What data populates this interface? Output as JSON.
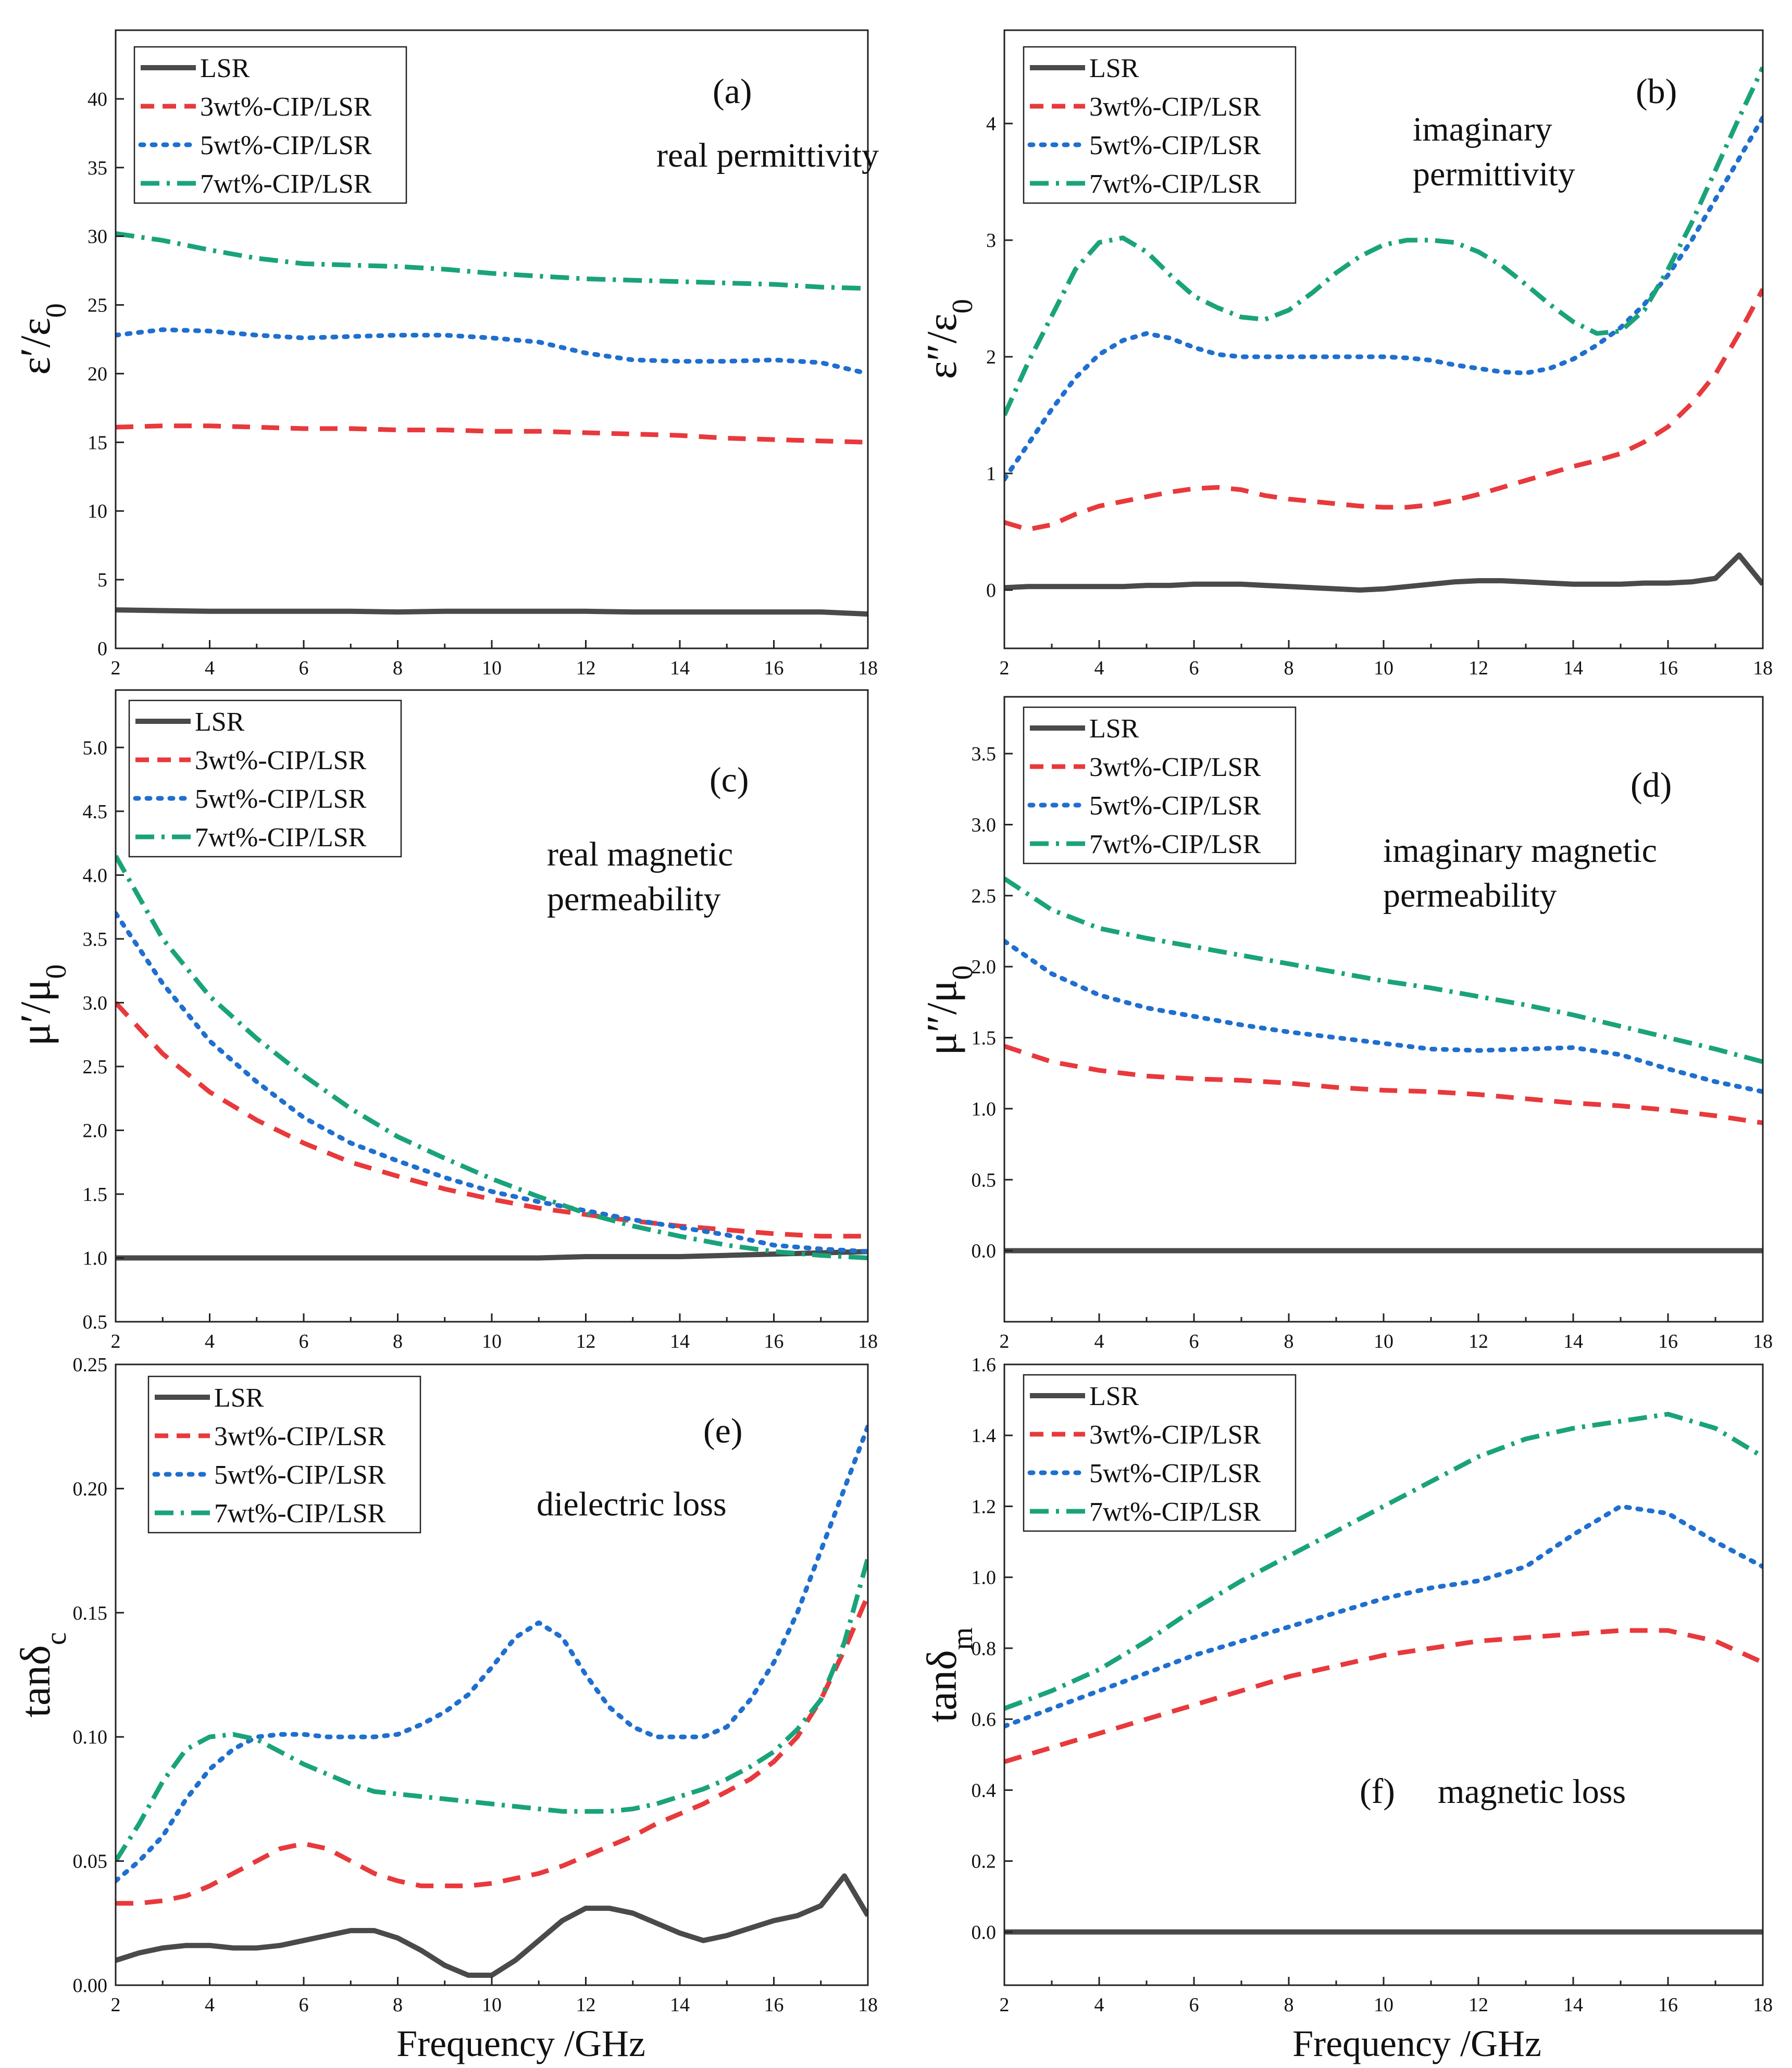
{
  "figure": {
    "xlabel_bottom": "Frequency /GHz",
    "legend": [
      "LSR",
      "3wt%-CIP/LSR",
      "5wt%-CIP/LSR",
      "7wt%-CIP/LSR"
    ],
    "series_colors": [
      "#4a4a4a",
      "#e8393c",
      "#1f6fcf",
      "#1aa37a"
    ],
    "series_styles": [
      "solid",
      "dashed",
      "dotted",
      "dashdot"
    ]
  },
  "chart_data": [
    {
      "type": "line",
      "label": "(a)",
      "annotation": [
        "real permittivity"
      ],
      "ylabel_main": "ε′/ε",
      "ylabel_sub": "0",
      "xlim": [
        2,
        18
      ],
      "ylim": [
        0,
        45
      ],
      "xticks": [
        "2",
        "4",
        "6",
        "8",
        "10",
        "12",
        "14",
        "16",
        "18"
      ],
      "yticks": [
        "0",
        "5",
        "10",
        "15",
        "20",
        "25",
        "30",
        "35",
        "40"
      ],
      "x": [
        2,
        3,
        4,
        5,
        6,
        7,
        8,
        9,
        10,
        11,
        12,
        13,
        14,
        15,
        16,
        17,
        18
      ],
      "series": [
        {
          "name": "LSR",
          "values": [
            2.8,
            2.75,
            2.7,
            2.7,
            2.7,
            2.7,
            2.65,
            2.7,
            2.7,
            2.7,
            2.7,
            2.65,
            2.65,
            2.65,
            2.65,
            2.65,
            2.5
          ]
        },
        {
          "name": "3wt%-CIP/LSR",
          "values": [
            16.1,
            16.2,
            16.2,
            16.1,
            16.0,
            16.0,
            15.9,
            15.9,
            15.8,
            15.8,
            15.7,
            15.6,
            15.5,
            15.3,
            15.2,
            15.1,
            15.0
          ]
        },
        {
          "name": "5wt%-CIP/LSR",
          "values": [
            22.8,
            23.2,
            23.1,
            22.8,
            22.6,
            22.7,
            22.8,
            22.8,
            22.6,
            22.3,
            21.5,
            21.0,
            20.9,
            20.9,
            21.0,
            20.8,
            20.0
          ]
        },
        {
          "name": "7wt%-CIP/LSR",
          "values": [
            30.2,
            29.7,
            29.0,
            28.4,
            28.0,
            27.9,
            27.8,
            27.6,
            27.3,
            27.1,
            26.9,
            26.8,
            26.7,
            26.6,
            26.5,
            26.3,
            26.2
          ]
        }
      ]
    },
    {
      "type": "line",
      "label": "(b)",
      "annotation": [
        "imaginary",
        "permittivity"
      ],
      "ylabel_main": "ε″/ε",
      "ylabel_sub": "0",
      "xlim": [
        2,
        18
      ],
      "ylim": [
        -0.5,
        4.8
      ],
      "xticks": [
        "2",
        "4",
        "6",
        "8",
        "10",
        "12",
        "14",
        "16",
        "18"
      ],
      "yticks": [
        "0",
        "1",
        "2",
        "3",
        "4"
      ],
      "x": [
        2,
        2.5,
        3,
        3.5,
        4,
        4.5,
        5,
        5.5,
        6,
        6.5,
        7,
        7.5,
        8,
        8.5,
        9,
        9.5,
        10,
        10.5,
        11,
        11.5,
        12,
        12.5,
        13,
        13.5,
        14,
        14.5,
        15,
        15.5,
        16,
        16.5,
        17,
        17.5,
        18
      ],
      "series": [
        {
          "name": "LSR",
          "values": [
            0.02,
            0.03,
            0.03,
            0.03,
            0.03,
            0.03,
            0.04,
            0.04,
            0.05,
            0.05,
            0.05,
            0.04,
            0.03,
            0.02,
            0.01,
            0.0,
            0.01,
            0.03,
            0.05,
            0.07,
            0.08,
            0.08,
            0.07,
            0.06,
            0.05,
            0.05,
            0.05,
            0.06,
            0.06,
            0.07,
            0.1,
            0.3,
            0.05
          ]
        },
        {
          "name": "3wt%-CIP/LSR",
          "values": [
            0.58,
            0.52,
            0.56,
            0.65,
            0.72,
            0.76,
            0.8,
            0.84,
            0.87,
            0.88,
            0.86,
            0.81,
            0.78,
            0.76,
            0.74,
            0.72,
            0.71,
            0.71,
            0.73,
            0.77,
            0.82,
            0.88,
            0.94,
            1.0,
            1.06,
            1.11,
            1.17,
            1.27,
            1.4,
            1.6,
            1.85,
            2.2,
            2.58
          ]
        },
        {
          "name": "5wt%-CIP/LSR",
          "values": [
            0.95,
            1.25,
            1.55,
            1.82,
            2.02,
            2.14,
            2.2,
            2.16,
            2.08,
            2.02,
            2.0,
            2.0,
            2.0,
            2.0,
            2.0,
            2.0,
            2.0,
            1.99,
            1.97,
            1.93,
            1.9,
            1.87,
            1.86,
            1.9,
            1.98,
            2.1,
            2.25,
            2.45,
            2.7,
            3.0,
            3.35,
            3.7,
            4.05
          ]
        },
        {
          "name": "7wt%-CIP/LSR",
          "values": [
            1.5,
            1.95,
            2.35,
            2.75,
            2.98,
            3.02,
            2.9,
            2.7,
            2.52,
            2.42,
            2.34,
            2.32,
            2.4,
            2.55,
            2.72,
            2.86,
            2.96,
            3.0,
            3.0,
            2.98,
            2.9,
            2.78,
            2.62,
            2.45,
            2.3,
            2.2,
            2.22,
            2.4,
            2.75,
            3.15,
            3.6,
            4.05,
            4.48
          ]
        }
      ]
    },
    {
      "type": "line",
      "label": "(c)",
      "annotation": [
        "real magnetic",
        "permeability"
      ],
      "ylabel_main": "μ′/μ",
      "ylabel_sub": "0",
      "xlim": [
        2,
        18
      ],
      "ylim": [
        0.5,
        5.45
      ],
      "xticks": [
        "2",
        "4",
        "6",
        "8",
        "10",
        "12",
        "14",
        "16",
        "18"
      ],
      "yticks": [
        "0.5",
        "1.0",
        "1.5",
        "2.0",
        "2.5",
        "3.0",
        "3.5",
        "4.0",
        "4.5",
        "5.0"
      ],
      "x": [
        2,
        3,
        4,
        5,
        6,
        7,
        8,
        9,
        10,
        11,
        12,
        13,
        14,
        15,
        16,
        17,
        18
      ],
      "series": [
        {
          "name": "LSR",
          "values": [
            1.0,
            1.0,
            1.0,
            1.0,
            1.0,
            1.0,
            1.0,
            1.0,
            1.0,
            1.0,
            1.01,
            1.01,
            1.01,
            1.02,
            1.03,
            1.04,
            1.05
          ]
        },
        {
          "name": "3wt%-CIP/LSR",
          "values": [
            3.0,
            2.6,
            2.3,
            2.08,
            1.9,
            1.75,
            1.64,
            1.54,
            1.46,
            1.39,
            1.34,
            1.29,
            1.25,
            1.22,
            1.19,
            1.17,
            1.17
          ]
        },
        {
          "name": "5wt%-CIP/LSR",
          "values": [
            3.7,
            3.15,
            2.7,
            2.38,
            2.1,
            1.9,
            1.76,
            1.63,
            1.52,
            1.44,
            1.37,
            1.3,
            1.24,
            1.18,
            1.1,
            1.07,
            1.05
          ]
        },
        {
          "name": "7wt%-CIP/LSR",
          "values": [
            4.15,
            3.5,
            3.05,
            2.72,
            2.43,
            2.17,
            1.95,
            1.78,
            1.62,
            1.48,
            1.35,
            1.25,
            1.17,
            1.1,
            1.05,
            1.02,
            1.0
          ]
        }
      ]
    },
    {
      "type": "line",
      "label": "(d)",
      "annotation": [
        "imaginary magnetic",
        "permeability"
      ],
      "ylabel_main": "μ″/μ",
      "ylabel_sub": "0",
      "xlim": [
        2,
        18
      ],
      "ylim": [
        -0.5,
        3.9
      ],
      "xticks": [
        "2",
        "4",
        "6",
        "8",
        "10",
        "12",
        "14",
        "16",
        "18"
      ],
      "yticks": [
        "0.0",
        "0.5",
        "1.0",
        "1.5",
        "2.0",
        "2.5",
        "3.0",
        "3.5"
      ],
      "x": [
        2,
        3,
        4,
        5,
        6,
        7,
        8,
        9,
        10,
        11,
        12,
        13,
        14,
        15,
        16,
        17,
        18
      ],
      "series": [
        {
          "name": "LSR",
          "values": [
            0.0,
            0.0,
            0.0,
            0.0,
            0.0,
            0.0,
            0.0,
            0.0,
            0.0,
            0.0,
            0.0,
            0.0,
            0.0,
            0.0,
            0.0,
            0.0,
            0.0
          ]
        },
        {
          "name": "3wt%-CIP/LSR",
          "values": [
            1.44,
            1.33,
            1.27,
            1.23,
            1.21,
            1.2,
            1.18,
            1.15,
            1.13,
            1.12,
            1.1,
            1.07,
            1.04,
            1.02,
            0.99,
            0.95,
            0.9
          ]
        },
        {
          "name": "5wt%-CIP/LSR",
          "values": [
            2.18,
            1.95,
            1.8,
            1.71,
            1.65,
            1.59,
            1.54,
            1.5,
            1.46,
            1.42,
            1.41,
            1.42,
            1.43,
            1.38,
            1.28,
            1.19,
            1.12
          ]
        },
        {
          "name": "7wt%-CIP/LSR",
          "values": [
            2.62,
            2.4,
            2.27,
            2.2,
            2.14,
            2.08,
            2.02,
            1.96,
            1.9,
            1.85,
            1.79,
            1.73,
            1.66,
            1.58,
            1.5,
            1.42,
            1.33
          ]
        }
      ]
    },
    {
      "type": "line",
      "label": "(e)",
      "annotation": [
        "dielectric loss"
      ],
      "ylabel_main": "tanδ",
      "ylabel_sub": "c",
      "xlim": [
        2,
        18
      ],
      "ylim": [
        0,
        0.25
      ],
      "xticks": [
        "2",
        "4",
        "6",
        "8",
        "10",
        "12",
        "14",
        "16",
        "18"
      ],
      "yticks": [
        "0.00",
        "0.05",
        "0.10",
        "0.15",
        "0.20",
        "0.25"
      ],
      "x": [
        2,
        2.5,
        3,
        3.5,
        4,
        4.5,
        5,
        5.5,
        6,
        6.5,
        7,
        7.5,
        8,
        8.5,
        9,
        9.5,
        10,
        10.5,
        11,
        11.5,
        12,
        12.5,
        13,
        13.5,
        14,
        14.5,
        15,
        15.5,
        16,
        16.5,
        17,
        17.5,
        18
      ],
      "series": [
        {
          "name": "LSR",
          "values": [
            0.01,
            0.013,
            0.015,
            0.016,
            0.016,
            0.015,
            0.015,
            0.016,
            0.018,
            0.02,
            0.022,
            0.022,
            0.019,
            0.014,
            0.008,
            0.004,
            0.004,
            0.01,
            0.018,
            0.026,
            0.031,
            0.031,
            0.029,
            0.025,
            0.021,
            0.018,
            0.02,
            0.023,
            0.026,
            0.028,
            0.032,
            0.044,
            0.028
          ]
        },
        {
          "name": "3wt%-CIP/LSR",
          "values": [
            0.033,
            0.033,
            0.034,
            0.036,
            0.04,
            0.045,
            0.05,
            0.055,
            0.057,
            0.055,
            0.05,
            0.045,
            0.042,
            0.04,
            0.04,
            0.04,
            0.041,
            0.043,
            0.045,
            0.048,
            0.052,
            0.056,
            0.06,
            0.065,
            0.069,
            0.073,
            0.078,
            0.083,
            0.09,
            0.1,
            0.115,
            0.135,
            0.157
          ]
        },
        {
          "name": "5wt%-CIP/LSR",
          "values": [
            0.042,
            0.05,
            0.06,
            0.075,
            0.087,
            0.095,
            0.1,
            0.101,
            0.101,
            0.1,
            0.1,
            0.1,
            0.101,
            0.105,
            0.11,
            0.117,
            0.128,
            0.14,
            0.146,
            0.14,
            0.125,
            0.112,
            0.104,
            0.1,
            0.1,
            0.1,
            0.104,
            0.115,
            0.13,
            0.15,
            0.175,
            0.2,
            0.225
          ]
        },
        {
          "name": "7wt%-CIP/LSR",
          "values": [
            0.05,
            0.065,
            0.082,
            0.095,
            0.1,
            0.101,
            0.099,
            0.094,
            0.089,
            0.085,
            0.081,
            0.078,
            0.077,
            0.076,
            0.075,
            0.074,
            0.073,
            0.072,
            0.071,
            0.07,
            0.07,
            0.07,
            0.071,
            0.073,
            0.076,
            0.079,
            0.083,
            0.088,
            0.094,
            0.103,
            0.115,
            0.138,
            0.172
          ]
        }
      ]
    },
    {
      "type": "line",
      "label": "(f)",
      "annotation": [
        "magnetic loss"
      ],
      "ylabel_main": "tanδ",
      "ylabel_sub": "m",
      "xlim": [
        2,
        18
      ],
      "ylim": [
        -0.15,
        1.6
      ],
      "xticks": [
        "2",
        "4",
        "6",
        "8",
        "10",
        "12",
        "14",
        "16",
        "18"
      ],
      "yticks": [
        "0.0",
        "0.2",
        "0.4",
        "0.6",
        "0.8",
        "1.0",
        "1.2",
        "1.4",
        "1.6"
      ],
      "x": [
        2,
        3,
        4,
        5,
        6,
        7,
        8,
        9,
        10,
        11,
        12,
        13,
        14,
        15,
        16,
        17,
        18
      ],
      "series": [
        {
          "name": "LSR",
          "values": [
            0.0,
            0.0,
            0.0,
            0.0,
            0.0,
            0.0,
            0.0,
            0.0,
            0.0,
            0.0,
            0.0,
            0.0,
            0.0,
            0.0,
            0.0,
            0.0,
            0.0
          ]
        },
        {
          "name": "3wt%-CIP/LSR",
          "values": [
            0.48,
            0.52,
            0.56,
            0.6,
            0.64,
            0.68,
            0.72,
            0.75,
            0.78,
            0.8,
            0.82,
            0.83,
            0.84,
            0.85,
            0.85,
            0.82,
            0.76
          ]
        },
        {
          "name": "5wt%-CIP/LSR",
          "values": [
            0.58,
            0.63,
            0.68,
            0.73,
            0.78,
            0.82,
            0.86,
            0.9,
            0.94,
            0.97,
            0.99,
            1.03,
            1.12,
            1.2,
            1.18,
            1.1,
            1.03
          ]
        },
        {
          "name": "7wt%-CIP/LSR",
          "values": [
            0.63,
            0.68,
            0.74,
            0.82,
            0.91,
            0.99,
            1.06,
            1.13,
            1.2,
            1.27,
            1.34,
            1.39,
            1.42,
            1.44,
            1.46,
            1.42,
            1.34
          ]
        }
      ]
    }
  ]
}
